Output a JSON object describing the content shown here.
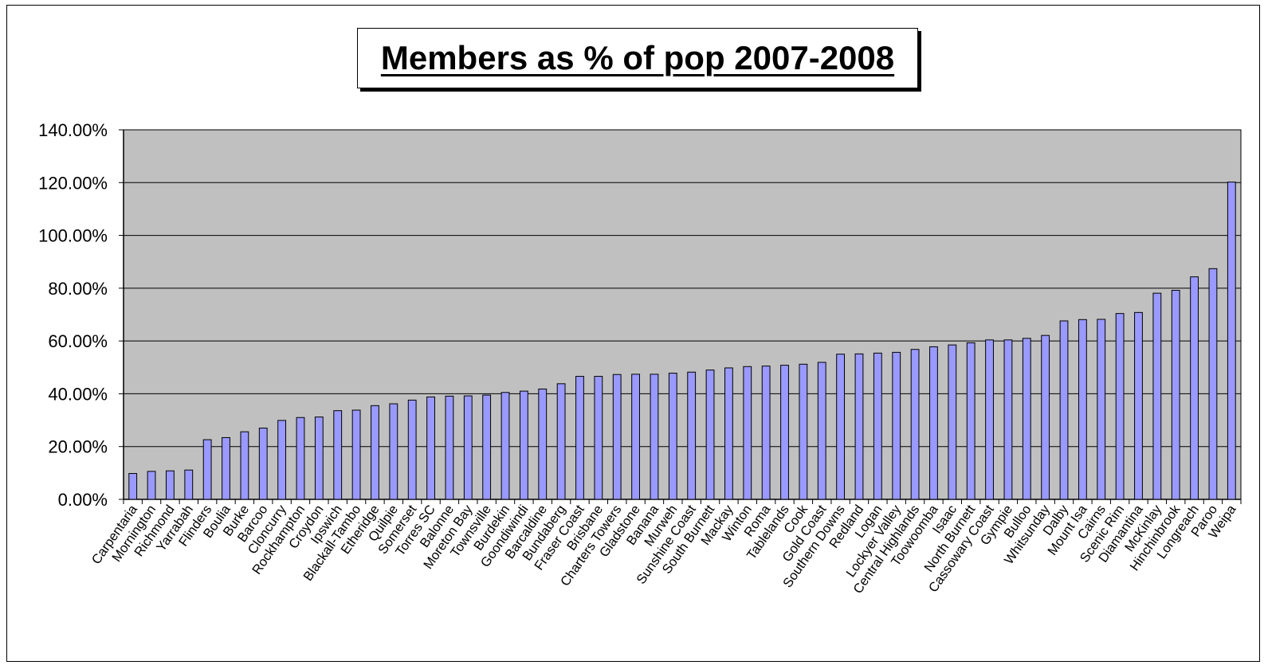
{
  "chart_data": {
    "type": "bar",
    "title": "Members as % of pop 2007-2008",
    "xlabel": "",
    "ylabel": "",
    "ylim": [
      0,
      1.4
    ],
    "yticks": [
      "0.00%",
      "20.00%",
      "40.00%",
      "60.00%",
      "80.00%",
      "100.00%",
      "120.00%",
      "140.00%"
    ],
    "grid": true,
    "legend": "none",
    "plot_background": "#C0C0C0",
    "bar_color": "#9999FF",
    "categories": [
      "Carpentaria",
      "Mornington",
      "Richmond",
      "Yarrabah",
      "Flinders",
      "Boulia",
      "Burke",
      "Barcoo",
      "Cloncurry",
      "Rockhampton",
      "Croydon",
      "Ipswich",
      "Blackall-Tambo",
      "Etheridge",
      "Quilpie",
      "Somerset",
      "Torres SC",
      "Balonne",
      "Moreton Bay",
      "Townsville",
      "Burdekin",
      "Goondiwindi",
      "Barcaldine",
      "Bundaberg",
      "Fraser Coast",
      "Brisbane",
      "Charters Towers",
      "Gladstone",
      "Banana",
      "Murweh",
      "Sunshine Coast",
      "South Burnett",
      "Mackay",
      "Winton",
      "Roma",
      "Tablelands",
      "Cook",
      "Gold Coast",
      "Southern Downs",
      "Redland",
      "Logan",
      "Lockyer Valley",
      "Central Highlands",
      "Toowoomba",
      "Isaac",
      "North Burnett",
      "Cassowary Coast",
      "Gympie",
      "Bulloo",
      "Whitsunday",
      "Dalby",
      "Mount Isa",
      "Cairns",
      "Scenic Rim",
      "Diamantina",
      "McKinlay",
      "Hinchinbrook",
      "Longreach",
      "Paroo",
      "Weipa"
    ],
    "values": [
      0.098,
      0.106,
      0.108,
      0.111,
      0.226,
      0.234,
      0.256,
      0.27,
      0.299,
      0.31,
      0.312,
      0.336,
      0.338,
      0.355,
      0.362,
      0.376,
      0.388,
      0.391,
      0.392,
      0.395,
      0.405,
      0.41,
      0.418,
      0.438,
      0.466,
      0.466,
      0.473,
      0.474,
      0.474,
      0.478,
      0.482,
      0.49,
      0.498,
      0.503,
      0.505,
      0.508,
      0.512,
      0.519,
      0.55,
      0.551,
      0.554,
      0.557,
      0.568,
      0.578,
      0.585,
      0.593,
      0.604,
      0.604,
      0.61,
      0.621,
      0.676,
      0.681,
      0.682,
      0.704,
      0.708,
      0.781,
      0.792,
      0.843,
      0.874,
      1.202
    ]
  }
}
